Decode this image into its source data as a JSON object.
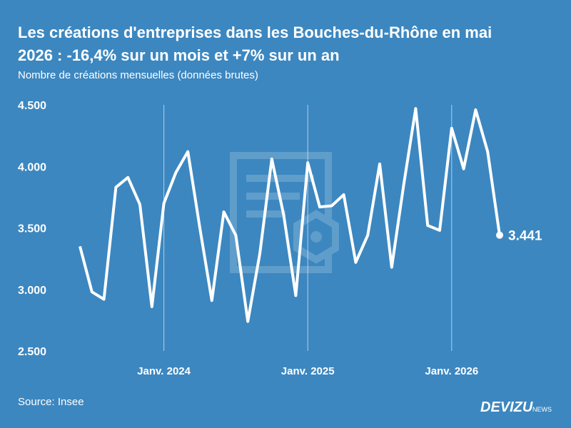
{
  "chart_data": {
    "type": "line",
    "title_lines": [
      "Les créations d'entreprises dans les Bouches-du-Rhône en mai",
      "2026 : -16,4% sur un mois et +7% sur un an"
    ],
    "subtitle": "Nombre de créations mensuelles (données brutes)",
    "source": "Source: Insee",
    "brand": "DEVIZU",
    "brand_suffix": "NEWS",
    "categories": [
      null,
      null,
      null,
      null,
      null,
      null,
      null,
      "Janv. 2024",
      null,
      null,
      null,
      null,
      null,
      null,
      null,
      null,
      null,
      null,
      null,
      "Janv. 2025",
      null,
      null,
      null,
      null,
      null,
      null,
      null,
      null,
      null,
      null,
      null,
      "Janv. 2026",
      null,
      null,
      null,
      null
    ],
    "series": [
      {
        "name": "Créations",
        "color": "#ffffff",
        "values": [
          3350,
          2980,
          2920,
          3830,
          3910,
          3690,
          2860,
          3700,
          3950,
          4120,
          3500,
          2910,
          3630,
          3440,
          2740,
          3290,
          4060,
          3600,
          2950,
          4030,
          3670,
          3680,
          3770,
          3220,
          3440,
          4020,
          3180,
          3850,
          4470,
          3520,
          3480,
          4310,
          3980,
          4460,
          4120,
          3441
        ],
        "value_labels": [
          null,
          null,
          null,
          null,
          null,
          null,
          null,
          null,
          null,
          null,
          null,
          null,
          null,
          null,
          null,
          null,
          null,
          null,
          null,
          null,
          null,
          null,
          null,
          null,
          null,
          null,
          null,
          null,
          null,
          null,
          null,
          null,
          null,
          null,
          null,
          "3.441"
        ]
      }
    ],
    "ylim": [
      2500,
      4500
    ],
    "yticks": [
      {
        "value": 2500,
        "label": "2.500"
      },
      {
        "value": 3000,
        "label": "3.000"
      },
      {
        "value": 3500,
        "label": "3.500"
      },
      {
        "value": 4000,
        "label": "4.000"
      },
      {
        "value": 4500,
        "label": "4.500"
      }
    ],
    "grid_x": true
  }
}
